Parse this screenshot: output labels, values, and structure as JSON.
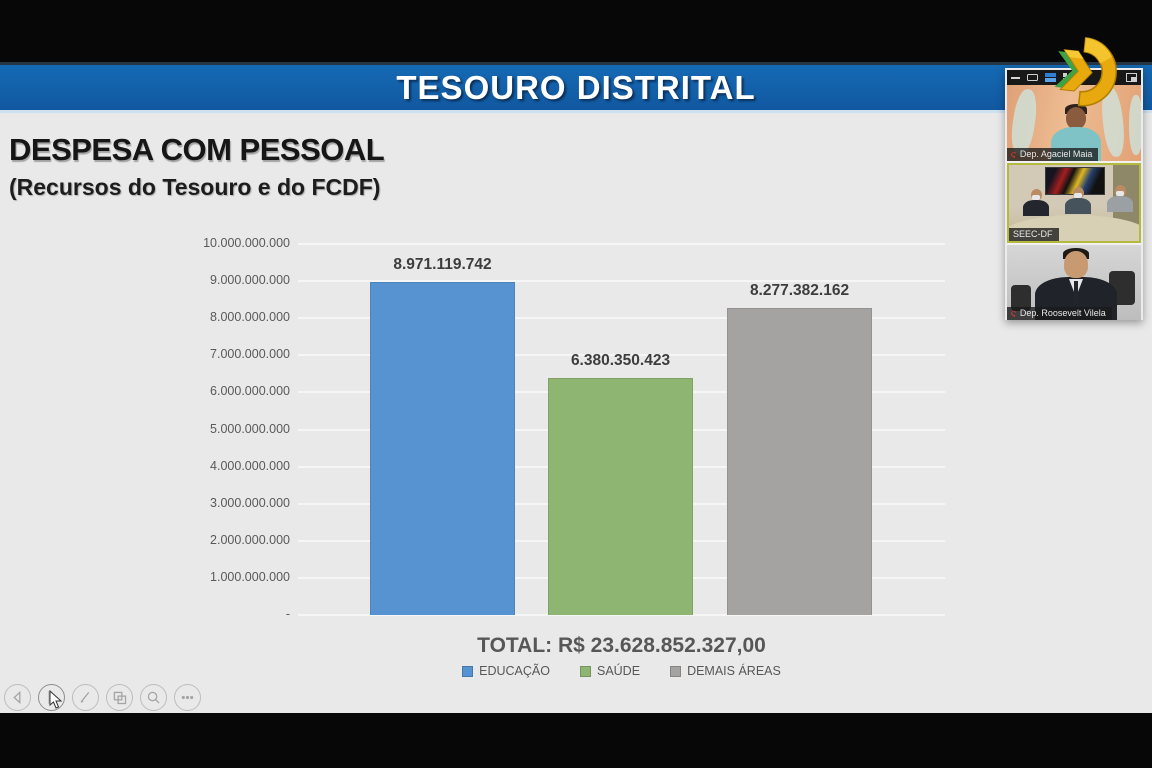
{
  "header": {
    "title": "TESOURO DISTRITAL"
  },
  "slide": {
    "title": "DESPESA COM PESSOAL",
    "subtitle": "(Recursos do Tesouro e do FCDF)",
    "total_label": "TOTAL: R$ 23.628.852.327,00"
  },
  "chart_data": {
    "type": "bar",
    "title": "DESPESA COM PESSOAL (Recursos do Tesouro e do FCDF)",
    "categories": [
      "EDUCAÇÃO",
      "SAÚDE",
      "DEMAIS ÁREAS"
    ],
    "values": [
      8971119742,
      6380350423,
      8277382162
    ],
    "value_labels": [
      "8.971.119.742",
      "6.380.350.423",
      "8.277.382.162"
    ],
    "colors": [
      "#5693d0",
      "#8fb573",
      "#a5a2a2"
    ],
    "ylim": [
      0,
      10000000000
    ],
    "ytick_interval": 1000000000,
    "ytick_labels": [
      "-",
      "1.000.000.000",
      "2.000.000.000",
      "3.000.000.000",
      "4.000.000.000",
      "5.000.000.000",
      "6.000.000.000",
      "7.000.000.000",
      "8.000.000.000",
      "9.000.000.000",
      "10.000.000.000"
    ],
    "grid": true,
    "legend_position": "bottom",
    "total": "R$ 23.628.852.327,00"
  },
  "video_panel": {
    "participants": [
      {
        "name": "Dep. Agaciel Maia",
        "muted": true,
        "active": false
      },
      {
        "name": "SEEC-DF",
        "muted": false,
        "active": true
      },
      {
        "name": "Dep. Roosevelt Vilela",
        "muted": true,
        "active": false
      }
    ]
  },
  "toolbar": {
    "buttons": [
      "previous-slide",
      "next-slide",
      "pen",
      "see-all-slides",
      "zoom",
      "more-options"
    ]
  }
}
